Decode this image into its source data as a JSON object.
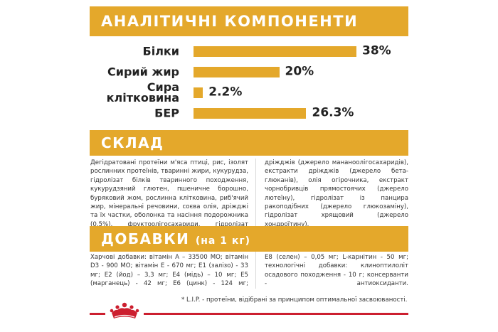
{
  "analytic": {
    "title": "АНАЛІТИЧНІ КОМПОНЕНТИ"
  },
  "chart_data": {
    "type": "bar",
    "orientation": "horizontal",
    "categories": [
      "Білки",
      "Сирий жир",
      "Сира клітковина",
      "БЕР"
    ],
    "values": [
      38,
      20,
      2.2,
      26.3
    ],
    "value_labels": [
      "38%",
      "20%",
      "2.2%",
      "26.3%"
    ],
    "xlim": [
      0,
      38
    ],
    "grid": false,
    "legend": "none",
    "color": "#e4a82b"
  },
  "composition": {
    "title": "СКЛАД",
    "left_text": "Дегідратовані протеїни м'яса птиці, рис, ізолят рослинних протеїнів, тваринні жири, кукурудза, гідролізат білків тваринного походження, кукурудзяний глютен, пшеничне борошно, буряковий жом, рослинна клітковина, риб'ячий жир, мінеральні речовини, соєва олія, дріжджі та їх частки, оболонка та насіння подорожника (0,5%), фруктоолігосахариди, гідролізат",
    "right_text": "дріжджів (джерело мананоолігосахаридів), екстракти дріжджів (джерело бета-глюканів), олія огірочника, екстракт чорнобривців прямостоячих (джерело лютеїну), гідролізат із панцира ракоподібних (джерело глюкозаміну), гідролізат хрящовий (джерело хондроїтину)."
  },
  "additives": {
    "title": "ДОБАВКИ",
    "subtitle": "(на 1 кг)",
    "left_text": "Харчові добавки: вітамін А – 33500 МО; вітамін D3 - 900 МО; вітамін Е - 670 мг; Е1 (залізо) - 33 мг; Е2 (йод) – 3,3 мг; Е4 (мідь) – 10 мг; Е5 (марганець) - 42 мг; Е6 (цинк) - 124 мг;",
    "right_text": "Е8 (селен) – 0,05 мг; L-карнітин - 50 мг; технологічні добавки: клиноптилоліт осадового походження - 10 г; консерванти - антиоксиданти."
  },
  "footnote": "* L.I.P. - протеїни, відібрані за принципом оптимальної засвоюваності.",
  "brand": {
    "logo_icon": "royal-canin-crown-icon",
    "accent_color": "#cc1f2f"
  }
}
